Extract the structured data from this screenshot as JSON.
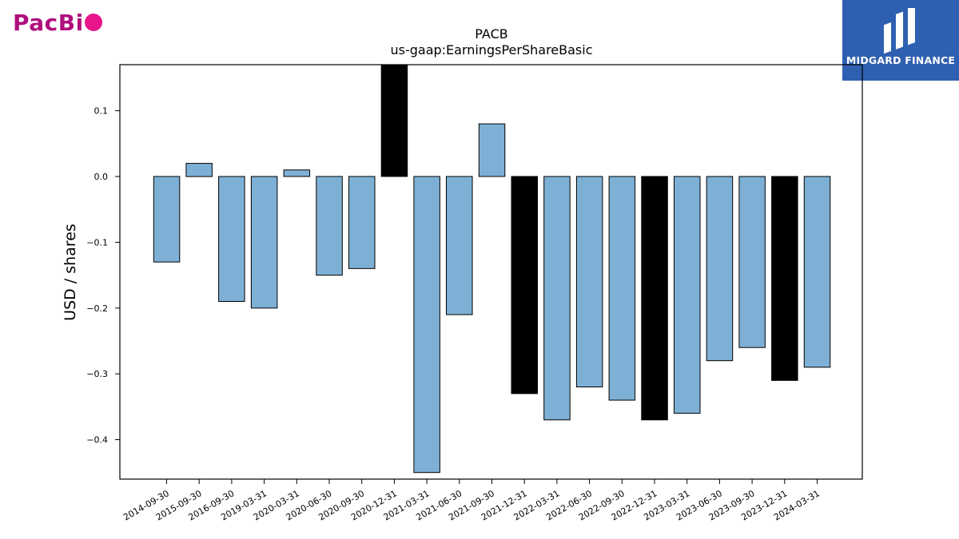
{
  "logos": {
    "company_text": "PacBi",
    "publisher_text": "MIDGARD FINANCE"
  },
  "chart_data": {
    "type": "bar",
    "title": "PACB",
    "subtitle": "us-gaap:EarningsPerShareBasic",
    "xlabel": "",
    "ylabel": "USD / shares",
    "ylim": [
      -0.46,
      0.17
    ],
    "yticks": [
      0.1,
      0.0,
      -0.1,
      -0.2,
      -0.3,
      -0.4
    ],
    "ytick_labels": [
      "0.1",
      "0.0",
      "−0.1",
      "−0.2",
      "−0.3",
      "−0.4"
    ],
    "grid": false,
    "categories": [
      "2014-09-30",
      "2015-09-30",
      "2016-09-30",
      "2019-03-31",
      "2020-03-31",
      "2020-06-30",
      "2020-09-30",
      "2020-12-31",
      "2021-03-31",
      "2021-06-30",
      "2021-09-30",
      "2021-12-31",
      "2022-03-31",
      "2022-06-30",
      "2022-09-30",
      "2022-12-31",
      "2023-03-31",
      "2023-06-30",
      "2023-09-30",
      "2023-12-31",
      "2024-03-31"
    ],
    "values": [
      -0.13,
      0.02,
      -0.19,
      -0.2,
      0.01,
      -0.15,
      -0.14,
      0.17,
      -0.45,
      -0.21,
      0.08,
      -0.33,
      -0.37,
      -0.32,
      -0.34,
      -0.37,
      -0.36,
      -0.28,
      -0.26,
      -0.31,
      -0.29
    ],
    "highlight": [
      false,
      false,
      false,
      false,
      false,
      false,
      false,
      true,
      false,
      false,
      false,
      true,
      false,
      false,
      false,
      true,
      false,
      false,
      false,
      true,
      false
    ],
    "colors": {
      "bar": "#7eb0d5",
      "highlight": "#000000",
      "edge": "#000000"
    }
  }
}
